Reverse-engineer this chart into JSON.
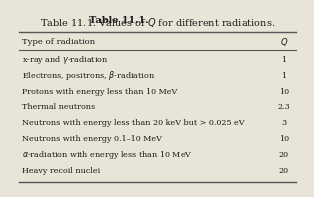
{
  "title_bold": "Table 11.1.",
  "title_rest": " Values of $Q$ for different radiations.",
  "header_col1": "Type of radiation",
  "header_col2": "$Q$",
  "rows": [
    [
      "x-ray and $\\gamma$-radiation",
      "1"
    ],
    [
      "Electrons, positrons, $\\beta$-radiation",
      "1"
    ],
    [
      "Protons with energy less than 10 MeV",
      "10"
    ],
    [
      "Thermal neutrons",
      "2.3"
    ],
    [
      "Neutrons with energy less than 20 keV but > 0.025 eV",
      "3"
    ],
    [
      "Neutrons with energy 0.1–10 MeV",
      "10"
    ],
    [
      "$\\alpha$-radiation with energy less than 10 MeV",
      "20"
    ],
    [
      "Heavy recoil nuclei",
      "20"
    ]
  ],
  "bg_color": "#e8e4d8",
  "text_color": "#1a1a1a",
  "line_color": "#555555",
  "font_size": 5.8,
  "header_font_size": 6.1,
  "title_font_size": 7.0
}
